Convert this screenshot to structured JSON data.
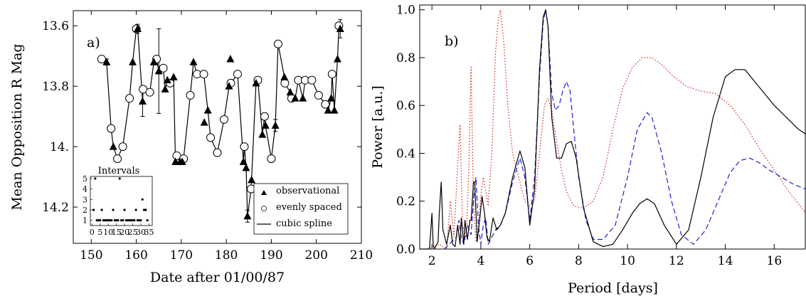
{
  "chart_data": [
    {
      "type": "line",
      "panel_label": "a)",
      "xlabel": "Date after 01/00/87",
      "ylabel": "Mean Opposition R Mag",
      "xlim": [
        146,
        210
      ],
      "ylim": [
        14.32,
        13.55
      ],
      "y_inverted": true,
      "xticks": [
        150,
        160,
        170,
        180,
        190,
        200,
        210
      ],
      "yticks": [
        13.6,
        13.8,
        14.0,
        14.2
      ],
      "ytick_labels": [
        "13.6",
        "13.8",
        "14.",
        "14.2"
      ],
      "legend_position": "bottom-right",
      "legend": [
        "observational",
        "evenly spaced",
        "cubic spline"
      ],
      "series": [
        {
          "name": "observational",
          "marker": "triangle",
          "x": [
            153.4,
            154.9,
            159.2,
            160.3,
            161.4,
            163.9,
            165.0,
            166.4,
            166.9,
            168.3,
            168.7,
            169.7,
            170.2,
            172.7,
            175.1,
            175.9,
            180.6,
            180.9,
            183.8,
            184.4,
            184.7,
            185.6,
            186.6,
            188.0,
            188.7,
            190.9,
            192.9,
            194.2,
            195.3,
            197.0,
            202.6,
            203.3,
            204.0,
            204.7,
            205.3
          ],
          "y": [
            13.72,
            14.0,
            13.72,
            13.61,
            13.85,
            13.72,
            13.75,
            13.81,
            13.78,
            13.77,
            14.05,
            14.05,
            14.05,
            13.72,
            13.92,
            13.88,
            13.8,
            13.71,
            14.05,
            14.07,
            14.23,
            14.11,
            13.79,
            13.96,
            13.93,
            13.93,
            13.77,
            13.82,
            13.84,
            13.84,
            13.88,
            13.84,
            13.88,
            13.71,
            13.61
          ]
        },
        {
          "name": "evenly spaced",
          "marker": "open-circle",
          "x": [
            152.3,
            154.4,
            155.8,
            157.0,
            158.5,
            160.0,
            161.5,
            163.0,
            164.5,
            166.0,
            167.5,
            169.0,
            170.5,
            172.0,
            173.5,
            175.0,
            176.5,
            178.0,
            179.5,
            181.0,
            182.5,
            184.0,
            185.5,
            187.0,
            188.5,
            190.0,
            191.5,
            193.0,
            194.5,
            196.0,
            197.5,
            199.0,
            200.5,
            202.0,
            203.5,
            205.0
          ],
          "y": [
            13.71,
            13.94,
            14.04,
            14.0,
            13.84,
            13.61,
            13.81,
            13.82,
            13.71,
            13.74,
            13.79,
            14.03,
            14.04,
            13.83,
            13.76,
            13.76,
            13.97,
            14.02,
            13.91,
            13.79,
            13.76,
            14.0,
            14.14,
            13.78,
            13.9,
            14.04,
            13.66,
            13.79,
            13.84,
            13.78,
            13.78,
            13.78,
            13.83,
            13.86,
            13.76,
            13.6
          ]
        }
      ],
      "spline": {
        "name": "cubic spline",
        "x": [
          152.3,
          153.4,
          154.4,
          154.9,
          155.8,
          157.0,
          158.5,
          159.2,
          160.0,
          160.3,
          161.4,
          161.5,
          163.0,
          163.9,
          164.5,
          165.0,
          166.0,
          166.4,
          166.9,
          167.5,
          168.3,
          168.7,
          169.0,
          169.7,
          170.2,
          170.5,
          172.0,
          172.7,
          173.5,
          175.0,
          175.9,
          176.5,
          178.0,
          179.5,
          180.6,
          181.0,
          182.5,
          183.8,
          184.0,
          184.4,
          184.7,
          185.5,
          186.6,
          187.0,
          188.0,
          188.5,
          188.7,
          190.0,
          190.9,
          191.5,
          192.9,
          193.0,
          194.2,
          194.5,
          195.3,
          196.0,
          197.0,
          197.5,
          199.0,
          200.5,
          202.0,
          202.6,
          203.3,
          203.5,
          204.0,
          204.7,
          205.0,
          205.3
        ],
        "y": [
          13.71,
          13.72,
          13.94,
          14.0,
          14.04,
          14.0,
          13.84,
          13.72,
          13.61,
          13.61,
          13.85,
          13.81,
          13.82,
          13.72,
          13.71,
          13.75,
          13.74,
          13.81,
          13.78,
          13.79,
          13.77,
          14.05,
          14.03,
          14.05,
          14.05,
          14.04,
          13.83,
          13.72,
          13.76,
          13.76,
          13.88,
          13.97,
          14.02,
          13.91,
          13.8,
          13.79,
          13.76,
          14.05,
          14.0,
          14.07,
          14.23,
          14.14,
          13.79,
          13.78,
          13.96,
          13.9,
          13.93,
          14.04,
          13.93,
          13.66,
          13.77,
          13.79,
          13.82,
          13.84,
          13.84,
          13.78,
          13.84,
          13.78,
          13.78,
          13.83,
          13.86,
          13.88,
          13.84,
          13.76,
          13.88,
          13.71,
          13.6,
          13.61
        ]
      },
      "error_bars": [
        {
          "x": 153.4,
          "y": 13.72,
          "err": 0.01
        },
        {
          "x": 160.3,
          "y": 13.61,
          "err": 0.015
        },
        {
          "x": 161.4,
          "y": 13.85,
          "err": 0.05
        },
        {
          "x": 165.0,
          "y": 13.75,
          "err": 0.14
        },
        {
          "x": 184.7,
          "y": 14.23,
          "err": 0.02
        },
        {
          "x": 190.9,
          "y": 13.93,
          "err": 0.02
        },
        {
          "x": 205.3,
          "y": 13.61,
          "err": 0.03
        }
      ],
      "inset": {
        "title": "Intervals",
        "xlim": [
          -1,
          37
        ],
        "ylim": [
          0.5,
          5.2
        ],
        "xticks": [
          0,
          5,
          10,
          15,
          20,
          25,
          30,
          35
        ],
        "yticks": [
          1,
          2,
          3,
          4,
          5
        ],
        "x": [
          1,
          2,
          3,
          4,
          5,
          6,
          7,
          8,
          9,
          10,
          11,
          12,
          13,
          14,
          15,
          16,
          17,
          18,
          19,
          20,
          21,
          22,
          23,
          24,
          25,
          26,
          27,
          28,
          29,
          30,
          31,
          32,
          33,
          34
        ],
        "y": [
          2,
          5,
          1,
          1,
          1,
          2,
          1,
          1,
          1,
          1,
          1,
          1,
          2,
          1,
          1,
          1,
          5,
          1,
          1,
          2,
          1,
          1,
          1,
          1,
          1,
          1,
          2,
          1,
          1,
          1,
          3,
          2,
          2,
          1
        ]
      }
    },
    {
      "type": "line",
      "panel_label": "b)",
      "xlabel": "Period [days]",
      "ylabel": "Power [a.u.]",
      "xlim": [
        1.5,
        17.3
      ],
      "ylim": [
        0,
        1.02
      ],
      "xticks": [
        2,
        4,
        6,
        8,
        10,
        12,
        14,
        16
      ],
      "yticks": [
        0.0,
        0.2,
        0.4,
        0.6,
        0.8,
        1.0
      ],
      "ytick_labels": [
        "0.0",
        "0.2",
        "0.4",
        "0.6",
        "0.8",
        "1.0"
      ],
      "series": [
        {
          "style": "solid",
          "color": "#000000",
          "x": [
            1.5,
            1.9,
            2.0,
            2.05,
            2.1,
            2.25,
            2.3,
            2.38,
            2.45,
            2.6,
            2.75,
            2.85,
            2.95,
            3.05,
            3.15,
            3.2,
            3.3,
            3.35,
            3.45,
            3.55,
            3.6,
            3.7,
            3.75,
            3.85,
            3.95,
            4.05,
            4.15,
            4.25,
            4.35,
            4.5,
            4.65,
            4.8,
            5.0,
            5.3,
            5.6,
            5.8,
            6.0,
            6.2,
            6.4,
            6.55,
            6.65,
            6.75,
            6.9,
            7.1,
            7.3,
            7.5,
            7.7,
            7.9,
            8.2,
            8.6,
            9.0,
            9.4,
            9.8,
            10.2,
            10.5,
            10.8,
            11.1,
            11.5,
            12.0,
            12.5,
            13.0,
            13.5,
            14.0,
            14.4,
            14.8,
            15.2,
            15.6,
            16.0,
            16.5,
            17.0,
            17.3
          ],
          "y": [
            0.0,
            0.0,
            0.15,
            0.02,
            0.0,
            0.03,
            0.15,
            0.28,
            0.08,
            0.02,
            0.1,
            0.02,
            0.01,
            0.1,
            0.02,
            0.13,
            0.02,
            0.12,
            0.04,
            0.12,
            0.12,
            0.28,
            0.28,
            0.03,
            0.12,
            0.22,
            0.15,
            0.05,
            0.03,
            0.13,
            0.08,
            0.1,
            0.15,
            0.3,
            0.41,
            0.34,
            0.1,
            0.25,
            0.75,
            0.97,
            1.0,
            0.93,
            0.55,
            0.38,
            0.38,
            0.44,
            0.45,
            0.38,
            0.17,
            0.03,
            0.01,
            0.02,
            0.08,
            0.15,
            0.19,
            0.21,
            0.19,
            0.1,
            0.02,
            0.08,
            0.3,
            0.55,
            0.72,
            0.75,
            0.75,
            0.7,
            0.65,
            0.6,
            0.55,
            0.5,
            0.48
          ]
        },
        {
          "style": "dashed",
          "color": "#1f1fd6",
          "x": [
            2.5,
            2.8,
            3.0,
            3.1,
            3.2,
            3.3,
            3.45,
            3.6,
            3.7,
            3.8,
            3.9,
            4.0,
            4.1,
            4.2,
            4.3,
            4.45,
            4.6,
            4.8,
            5.0,
            5.3,
            5.6,
            5.8,
            6.0,
            6.2,
            6.4,
            6.55,
            6.65,
            6.75,
            6.9,
            7.05,
            7.2,
            7.35,
            7.5,
            7.65,
            7.8,
            8.0,
            8.3,
            8.6,
            9.0,
            9.5,
            10.0,
            10.4,
            10.8,
            11.0,
            11.4,
            11.8,
            12.2,
            12.7,
            13.2,
            13.7,
            14.2,
            14.6,
            15.0,
            15.4,
            15.8,
            16.3,
            16.8,
            17.3
          ],
          "y": [
            0.0,
            0.03,
            0.05,
            0.12,
            0.05,
            0.02,
            0.1,
            0.06,
            0.2,
            0.3,
            0.1,
            0.02,
            0.1,
            0.13,
            0.02,
            0.05,
            0.08,
            0.1,
            0.15,
            0.28,
            0.38,
            0.3,
            0.12,
            0.3,
            0.72,
            0.95,
            1.0,
            0.93,
            0.65,
            0.58,
            0.6,
            0.66,
            0.7,
            0.66,
            0.5,
            0.3,
            0.12,
            0.04,
            0.04,
            0.1,
            0.3,
            0.5,
            0.57,
            0.55,
            0.4,
            0.2,
            0.06,
            0.02,
            0.08,
            0.2,
            0.32,
            0.37,
            0.38,
            0.36,
            0.33,
            0.3,
            0.27,
            0.25
          ]
        },
        {
          "style": "dotted",
          "color": "#d62020",
          "x": [
            1.8,
            2.3,
            2.6,
            2.75,
            2.9,
            3.05,
            3.15,
            3.25,
            3.4,
            3.5,
            3.6,
            3.7,
            3.8,
            3.9,
            4.0,
            4.1,
            4.2,
            4.3,
            4.45,
            4.6,
            4.7,
            4.8,
            4.95,
            5.1,
            5.3,
            5.6,
            5.8,
            6.0,
            6.2,
            6.4,
            6.6,
            6.75,
            6.9,
            7.1,
            7.3,
            7.5,
            7.8,
            8.2,
            8.6,
            9.0,
            9.4,
            9.8,
            10.2,
            10.6,
            11.0,
            11.4,
            11.9,
            12.4,
            13.0,
            13.6,
            14.2,
            14.8,
            15.4,
            16.0,
            16.6,
            17.3
          ],
          "y": [
            0.0,
            0.02,
            0.0,
            0.2,
            0.05,
            0.35,
            0.52,
            0.1,
            0.05,
            0.3,
            0.76,
            0.2,
            0.03,
            0.1,
            0.22,
            0.3,
            0.24,
            0.18,
            0.4,
            0.82,
            0.95,
            1.0,
            0.85,
            0.6,
            0.4,
            0.28,
            0.2,
            0.18,
            0.2,
            0.4,
            0.6,
            0.63,
            0.58,
            0.45,
            0.33,
            0.24,
            0.18,
            0.17,
            0.2,
            0.3,
            0.5,
            0.67,
            0.76,
            0.8,
            0.8,
            0.77,
            0.72,
            0.68,
            0.66,
            0.65,
            0.6,
            0.52,
            0.42,
            0.33,
            0.24,
            0.15
          ]
        }
      ]
    }
  ]
}
